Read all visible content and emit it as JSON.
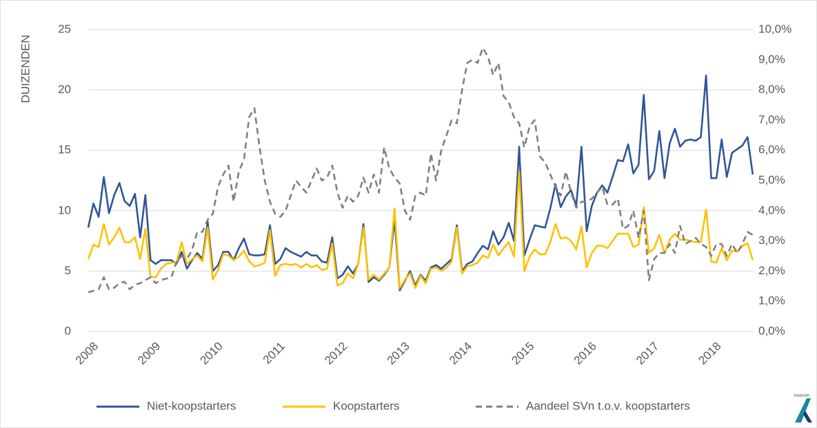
{
  "chart_data": {
    "type": "line",
    "y_label": "DUIZENDEN",
    "categories": [
      "2008",
      null,
      null,
      null,
      null,
      null,
      null,
      null,
      null,
      null,
      null,
      null,
      "2009",
      null,
      null,
      null,
      null,
      null,
      null,
      null,
      null,
      null,
      null,
      null,
      "2010",
      null,
      null,
      null,
      null,
      null,
      null,
      null,
      null,
      null,
      null,
      null,
      "2011",
      null,
      null,
      null,
      null,
      null,
      null,
      null,
      null,
      null,
      null,
      null,
      "2012",
      null,
      null,
      null,
      null,
      null,
      null,
      null,
      null,
      null,
      null,
      null,
      "2013",
      null,
      null,
      null,
      null,
      null,
      null,
      null,
      null,
      null,
      null,
      null,
      "2014",
      null,
      null,
      null,
      null,
      null,
      null,
      null,
      null,
      null,
      null,
      null,
      "2015",
      null,
      null,
      null,
      null,
      null,
      null,
      null,
      null,
      null,
      null,
      null,
      "2016",
      null,
      null,
      null,
      null,
      null,
      null,
      null,
      null,
      null,
      null,
      null,
      "2017",
      null,
      null,
      null,
      null,
      null,
      null,
      null,
      null,
      null,
      null,
      null,
      "2018",
      null,
      null,
      null,
      null,
      null,
      null,
      null,
      null
    ],
    "series": [
      {
        "name": "Niet-koopstarters",
        "color": "#2f5597",
        "line_style": "solid",
        "values": [
          8.6,
          10.6,
          9.5,
          12.8,
          9.8,
          11.3,
          12.3,
          10.8,
          10.4,
          11.4,
          7.8,
          11.3,
          5.9,
          5.6,
          5.9,
          5.9,
          5.9,
          5.6,
          6.6,
          5.2,
          5.9,
          6.5,
          6.0,
          9.1,
          5.0,
          5.5,
          6.6,
          6.6,
          5.9,
          6.9,
          7.7,
          6.4,
          6.3,
          6.3,
          6.4,
          8.8,
          5.6,
          6.0,
          6.9,
          6.6,
          6.4,
          6.2,
          6.6,
          6.3,
          6.3,
          5.8,
          5.7,
          7.8,
          4.4,
          4.7,
          5.4,
          4.8,
          5.6,
          8.9,
          4.1,
          4.5,
          4.2,
          4.7,
          5.3,
          9.3,
          3.4,
          4.2,
          5.0,
          3.8,
          4.7,
          4.2,
          5.3,
          5.5,
          5.2,
          5.6,
          6.0,
          8.8,
          5.0,
          5.6,
          5.8,
          6.5,
          7.1,
          6.8,
          8.3,
          7.2,
          7.8,
          9.0,
          7.5,
          15.3,
          6.3,
          7.6,
          8.8,
          8.7,
          8.6,
          10.2,
          12.2,
          10.3,
          11.2,
          11.7,
          10.4,
          15.3,
          8.3,
          10.4,
          11.5,
          12.1,
          11.5,
          12.8,
          14.2,
          14.1,
          15.5,
          13.1,
          13.8,
          19.6,
          12.6,
          13.3,
          16.6,
          12.7,
          15.6,
          16.8,
          15.3,
          15.8,
          15.9,
          15.8,
          16.1,
          21.2,
          12.7,
          12.7,
          15.9,
          12.8,
          14.8,
          15.1,
          15.4,
          16.1,
          13.0
        ]
      },
      {
        "name": "Koopstarters",
        "color": "#ffc000",
        "line_style": "solid",
        "values": [
          6.0,
          7.2,
          7.0,
          8.9,
          7.2,
          7.8,
          8.6,
          7.4,
          7.4,
          7.8,
          6.0,
          8.5,
          4.5,
          4.5,
          5.2,
          5.6,
          5.7,
          5.7,
          7.4,
          5.6,
          6.0,
          6.3,
          5.8,
          8.6,
          4.3,
          5.1,
          6.4,
          6.3,
          5.9,
          6.2,
          6.7,
          5.8,
          5.4,
          5.5,
          5.7,
          8.4,
          4.6,
          5.5,
          5.6,
          5.5,
          5.6,
          5.3,
          5.6,
          5.3,
          5.5,
          5.1,
          5.2,
          7.3,
          3.8,
          4.0,
          4.8,
          4.4,
          5.6,
          8.6,
          4.3,
          4.7,
          4.3,
          4.8,
          5.3,
          10.2,
          3.6,
          4.3,
          4.8,
          3.6,
          4.6,
          4.0,
          5.2,
          5.3,
          5.0,
          5.3,
          5.8,
          8.6,
          4.8,
          5.4,
          5.5,
          5.7,
          6.3,
          6.1,
          7.2,
          6.3,
          6.9,
          7.4,
          6.2,
          13.2,
          5.0,
          6.2,
          6.8,
          6.4,
          6.4,
          7.4,
          8.9,
          7.7,
          7.8,
          7.5,
          6.8,
          8.7,
          5.3,
          6.5,
          7.1,
          7.1,
          6.9,
          7.5,
          8.1,
          8.1,
          8.1,
          7.0,
          7.2,
          10.3,
          6.5,
          6.9,
          8.0,
          6.5,
          7.6,
          8.1,
          7.6,
          7.6,
          7.5,
          7.4,
          7.4,
          10.1,
          5.8,
          5.7,
          6.9,
          5.9,
          6.7,
          6.6,
          7.1,
          7.3,
          5.9
        ]
      },
      {
        "name": "Aandeel SVn t.o.v. koopstarters",
        "color": "#7f7f7f",
        "line_style": "dashed",
        "axis": "y2",
        "values": [
          1.3,
          1.35,
          1.4,
          1.8,
          1.4,
          1.45,
          1.6,
          1.65,
          1.4,
          1.55,
          1.6,
          1.7,
          1.8,
          1.6,
          1.7,
          1.75,
          1.8,
          2.3,
          2.5,
          2.4,
          2.7,
          3.3,
          3.3,
          3.7,
          3.9,
          4.8,
          5.2,
          5.5,
          4.3,
          5.3,
          5.7,
          7.1,
          7.4,
          6.1,
          5.0,
          4.3,
          3.9,
          3.8,
          4.0,
          4.5,
          5.0,
          4.8,
          4.6,
          5.0,
          5.4,
          5.0,
          5.1,
          5.5,
          4.6,
          4.1,
          4.5,
          4.3,
          4.5,
          5.1,
          4.6,
          5.2,
          4.6,
          6.1,
          5.4,
          5.1,
          4.9,
          4.0,
          3.7,
          4.5,
          4.6,
          4.5,
          5.9,
          5.0,
          6.0,
          6.5,
          7.0,
          6.9,
          8.0,
          8.9,
          9.0,
          8.9,
          9.4,
          9.1,
          8.5,
          8.9,
          7.8,
          7.6,
          7.1,
          6.9,
          6.1,
          6.8,
          7.0,
          5.8,
          5.6,
          5.2,
          4.8,
          4.5,
          5.3,
          4.6,
          4.1,
          4.3,
          4.3,
          4.4,
          4.6,
          4.8,
          4.2,
          4.2,
          4.4,
          3.4,
          3.5,
          4.0,
          3.1,
          4.0,
          1.7,
          2.4,
          2.6,
          2.6,
          2.9,
          2.6,
          3.5,
          2.9,
          3.0,
          3.1,
          2.9,
          2.8,
          2.5,
          2.9,
          2.9,
          2.5,
          2.9,
          2.6,
          2.9,
          3.3,
          3.2
        ]
      }
    ],
    "ylim": [
      0,
      25
    ],
    "yticks": [
      0,
      5,
      10,
      15,
      20,
      25
    ],
    "y2lim": [
      0,
      10
    ],
    "y2ticks": [
      {
        "value": 0,
        "label": "0,0%"
      },
      {
        "value": 1,
        "label": "1,0%"
      },
      {
        "value": 2,
        "label": "2,0%"
      },
      {
        "value": 3,
        "label": "3,0%"
      },
      {
        "value": 4,
        "label": "4,0%"
      },
      {
        "value": 5,
        "label": "5,0%"
      },
      {
        "value": 6,
        "label": "6,0%"
      },
      {
        "value": 7,
        "label": "7,0%"
      },
      {
        "value": 8,
        "label": "8,0%"
      },
      {
        "value": 9,
        "label": "9,0%"
      },
      {
        "value": 10,
        "label": "10,0%"
      }
    ],
    "grid": true,
    "legend": "bottom"
  },
  "logo_text": "kadaster"
}
